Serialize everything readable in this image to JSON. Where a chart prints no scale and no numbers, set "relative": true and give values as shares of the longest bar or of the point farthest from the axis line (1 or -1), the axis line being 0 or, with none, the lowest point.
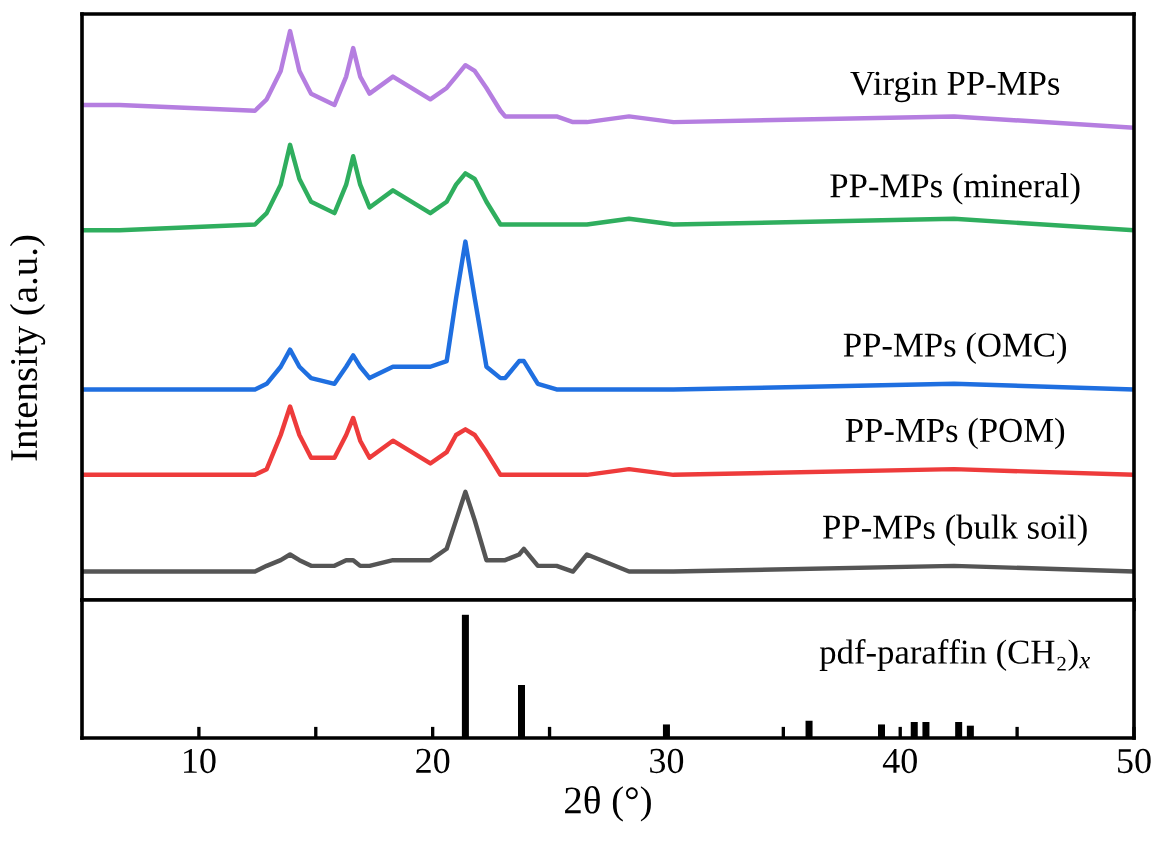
{
  "chart_data": [
    {
      "type": "line",
      "relative": true,
      "ylabel": "Intensity (a.u.)",
      "xlim": [
        5,
        50
      ],
      "xticks": [
        10,
        {
          "value": 15,
          "label": null
        },
        20,
        {
          "value": 25,
          "label": null
        },
        30,
        {
          "value": 35,
          "label": null
        },
        40,
        {
          "value": 45,
          "label": null
        },
        50
      ],
      "tick_labels": false,
      "grid": false,
      "legend": false,
      "marker": "none",
      "line_style": "solid",
      "x": [
        5,
        6.6,
        12.4,
        12.9,
        13.5,
        13.9,
        14.3,
        14.8,
        15.8,
        16.3,
        16.6,
        16.9,
        17.3,
        18.3,
        19.9,
        20.6,
        21.0,
        21.4,
        21.8,
        22.3,
        22.9,
        23.1,
        23.7,
        23.9,
        24.5,
        25.3,
        26.0,
        26.6,
        28.4,
        30.3,
        42.3,
        50
      ],
      "series": [
        {
          "name": "Virgin PP-MPs",
          "color": "#b57ee0",
          "values": [
            0.87,
            0.87,
            0.86,
            0.88,
            0.93,
            1.0,
            0.93,
            0.89,
            0.87,
            0.92,
            0.97,
            0.92,
            0.89,
            0.92,
            0.88,
            0.9,
            0.92,
            0.94,
            0.93,
            0.9,
            0.86,
            0.85,
            0.85,
            0.85,
            0.85,
            0.85,
            0.84,
            0.84,
            0.85,
            0.84,
            0.85,
            0.83
          ]
        },
        {
          "name": "PP-MPs (mineral)",
          "color": "#2fae5e",
          "values": [
            0.65,
            0.65,
            0.66,
            0.68,
            0.73,
            0.8,
            0.74,
            0.7,
            0.68,
            0.73,
            0.78,
            0.73,
            0.69,
            0.72,
            0.68,
            0.7,
            0.73,
            0.75,
            0.74,
            0.7,
            0.66,
            0.66,
            0.66,
            0.66,
            0.66,
            0.66,
            0.66,
            0.66,
            0.67,
            0.66,
            0.67,
            0.65
          ]
        },
        {
          "name": "PP-MPs (OMC)",
          "color": "#1f6fe0",
          "values": [
            0.37,
            0.37,
            0.37,
            0.38,
            0.41,
            0.44,
            0.41,
            0.39,
            0.38,
            0.41,
            0.43,
            0.41,
            0.39,
            0.41,
            0.41,
            0.42,
            0.53,
            0.63,
            0.53,
            0.41,
            0.39,
            0.39,
            0.42,
            0.42,
            0.38,
            0.37,
            0.37,
            0.37,
            0.37,
            0.37,
            0.38,
            0.37
          ]
        },
        {
          "name": "PP-MPs (POM)",
          "color": "#ee3b3b",
          "values": [
            0.22,
            0.22,
            0.22,
            0.23,
            0.29,
            0.34,
            0.29,
            0.25,
            0.25,
            0.29,
            0.32,
            0.28,
            0.25,
            0.28,
            0.24,
            0.26,
            0.29,
            0.3,
            0.29,
            0.26,
            0.22,
            0.22,
            0.22,
            0.22,
            0.22,
            0.22,
            0.22,
            0.22,
            0.23,
            0.22,
            0.23,
            0.22
          ]
        },
        {
          "name": "PP-MPs (bulk soil)",
          "color": "#555555",
          "values": [
            0.05,
            0.05,
            0.05,
            0.06,
            0.07,
            0.08,
            0.07,
            0.06,
            0.06,
            0.07,
            0.07,
            0.06,
            0.06,
            0.07,
            0.07,
            0.09,
            0.14,
            0.19,
            0.14,
            0.07,
            0.07,
            0.07,
            0.08,
            0.09,
            0.06,
            0.06,
            0.05,
            0.08,
            0.05,
            0.05,
            0.06,
            0.05
          ]
        }
      ]
    },
    {
      "type": "bar",
      "relative": true,
      "xlabel": "2θ (°)",
      "xlim": [
        5,
        50
      ],
      "xticks": [
        10,
        {
          "value": 15,
          "label": null
        },
        20,
        {
          "value": 25,
          "label": null
        },
        30,
        {
          "value": 35,
          "label": null
        },
        40,
        {
          "value": 45,
          "label": null
        },
        50
      ],
      "tick_labels": "x",
      "grid": false,
      "legend": false,
      "x": [
        21.4,
        23.8,
        30.0,
        36.1,
        39.2,
        40.6,
        41.1,
        42.5,
        43.0
      ],
      "series": [
        {
          "name": "pdf-paraffin (CH₂)$_{x}$",
          "color": "#000000",
          "values": [
            1.0,
            0.43,
            0.11,
            0.14,
            0.11,
            0.13,
            0.13,
            0.13,
            0.1
          ]
        }
      ]
    }
  ]
}
